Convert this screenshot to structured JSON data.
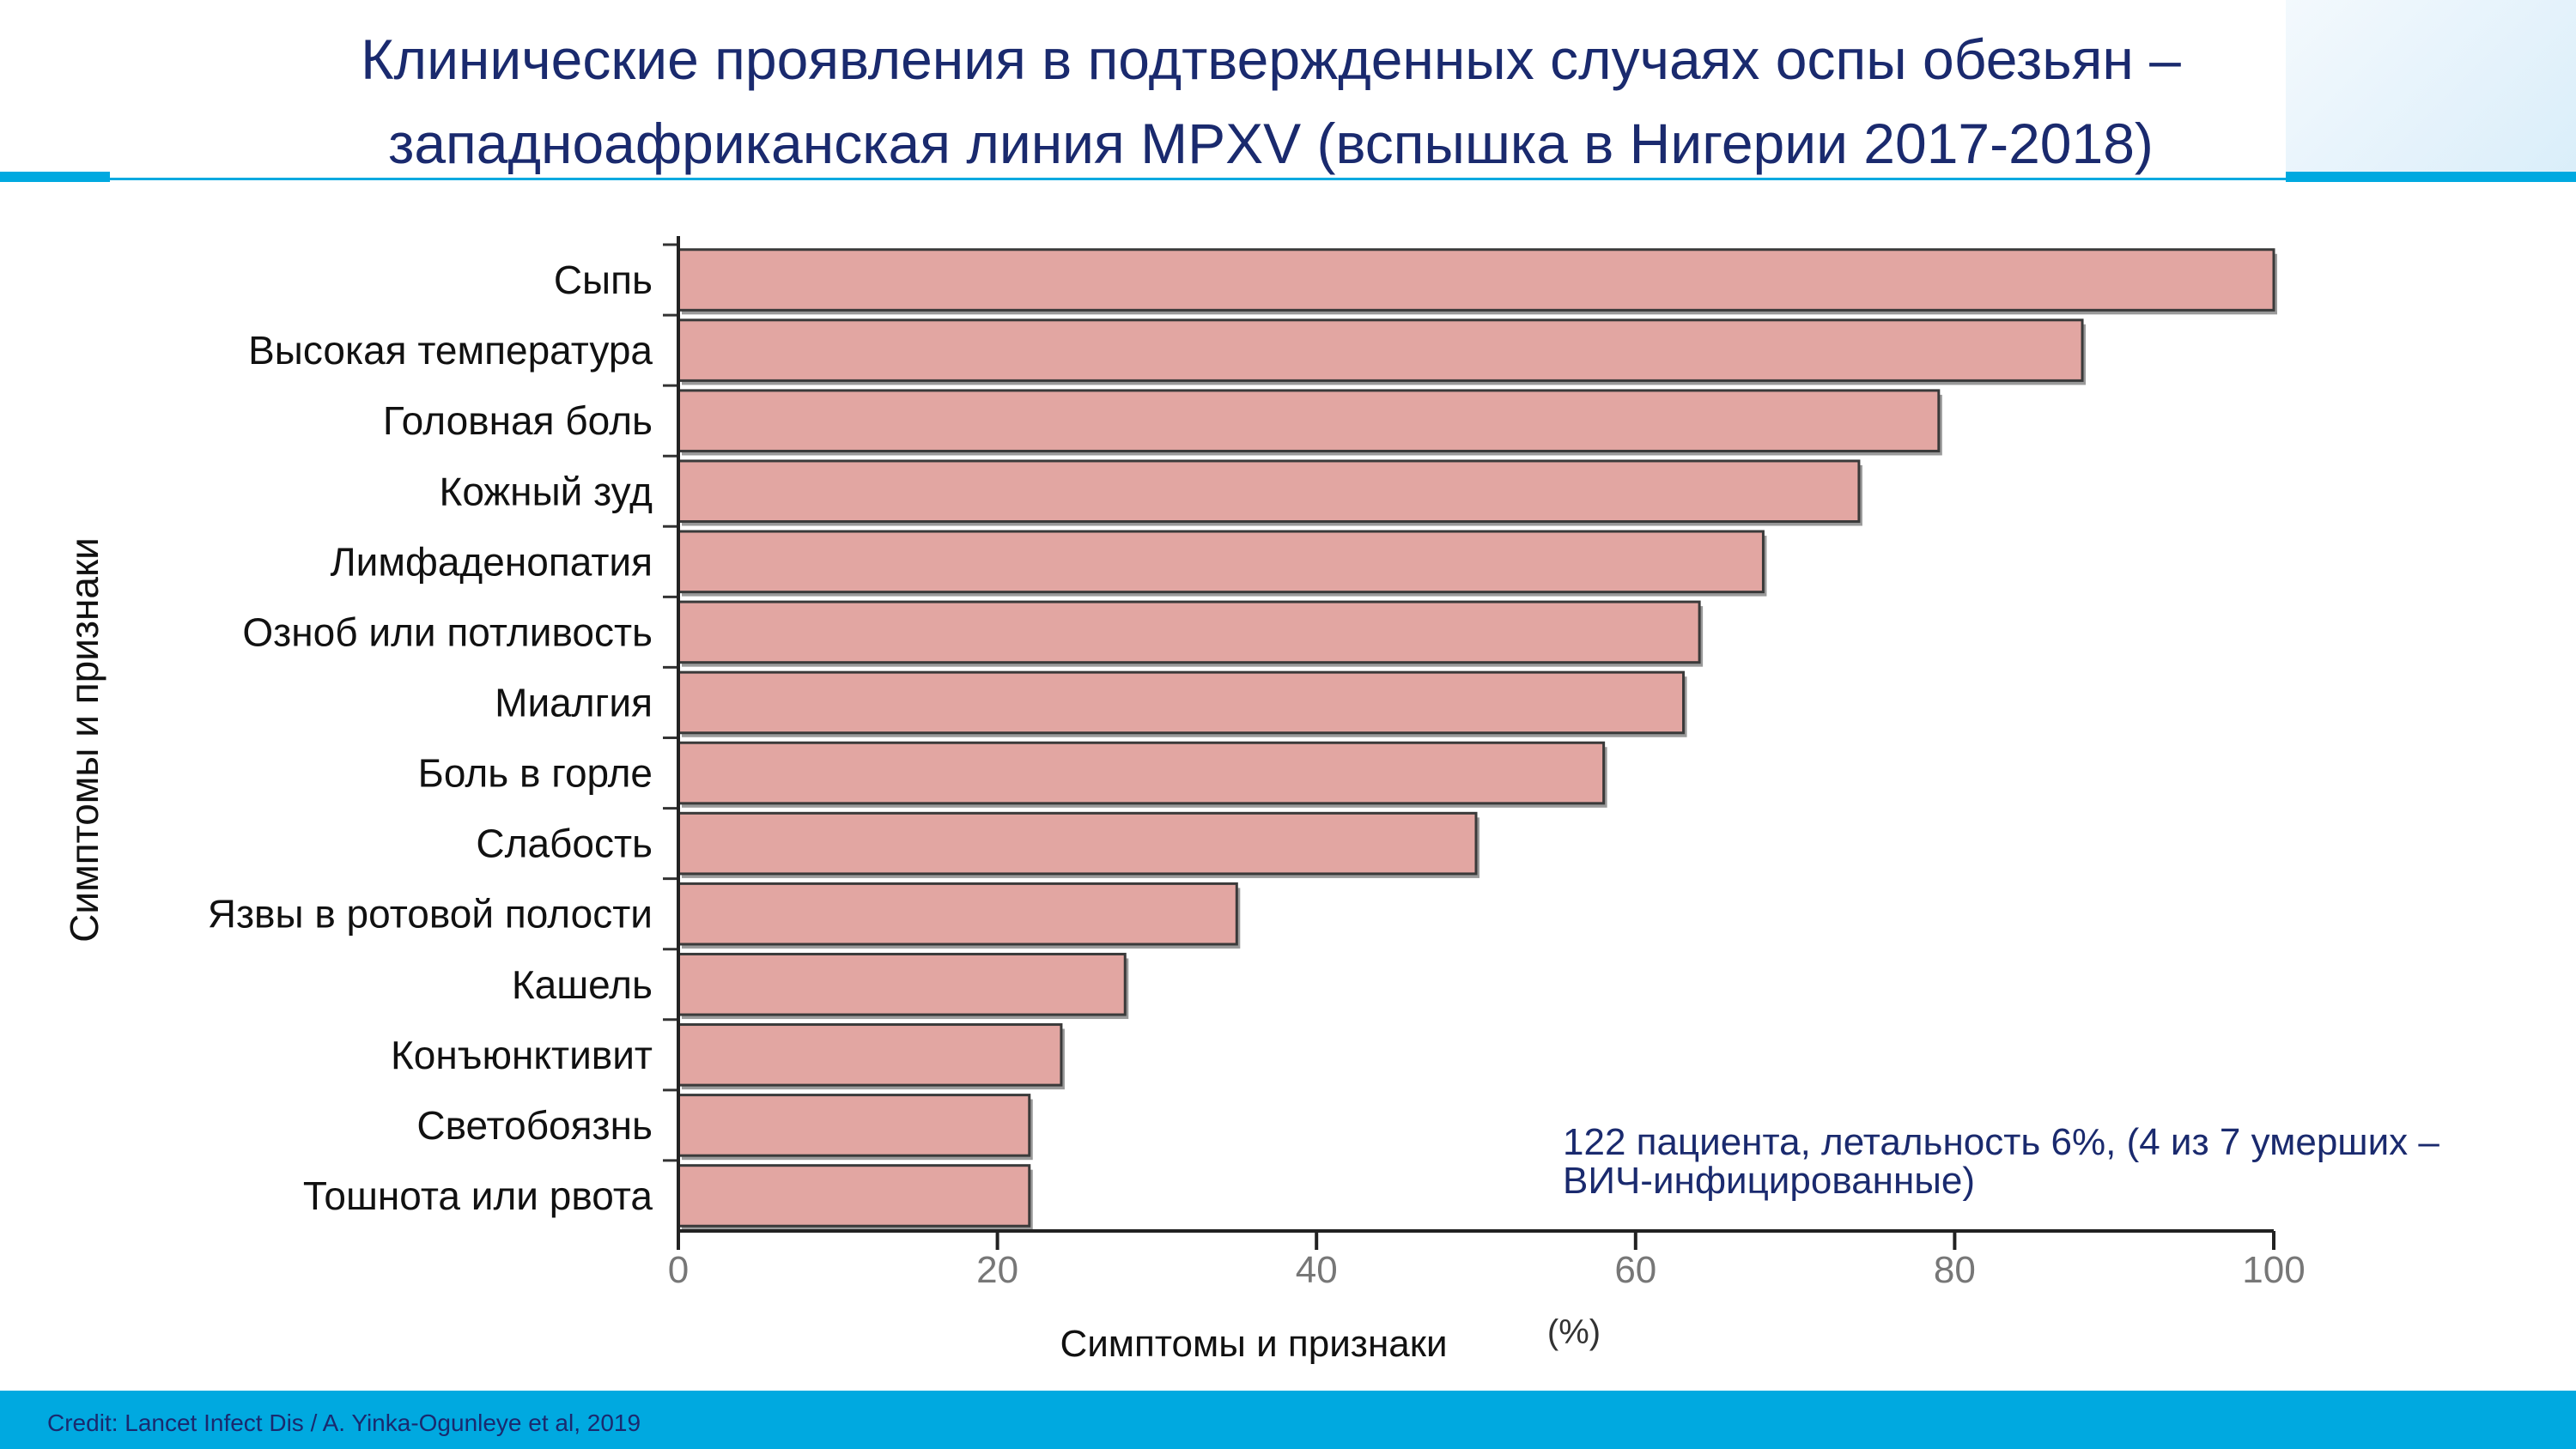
{
  "slide": {
    "title_line1": "Клинические проявления в подтвержденных случаях оспы обезьян –",
    "title_line2": "западноафриканская линия MPXV (вспышка в Нигерии 2017-2018)",
    "credit": "Credit: Lancet Infect Dis / A. Yinka-Ogunleye et al, 2019",
    "accent_color": "#00a9e0",
    "title_color": "#1a2a6e"
  },
  "chart_data": {
    "type": "bar",
    "orientation": "horizontal",
    "title": "",
    "categories": [
      "Сыпь",
      "Высокая температура",
      "Головная боль",
      "Кожный зуд",
      "Лимфаденопатия",
      "Озноб или потливость",
      "Миалгия",
      "Боль в горле",
      "Слабость",
      "Язвы в ротовой полости",
      "Кашель",
      "Конъюнктивит",
      "Светобоязнь",
      "Тошнота или рвота"
    ],
    "values": [
      100,
      88,
      79,
      74,
      68,
      64,
      63,
      58,
      50,
      35,
      28,
      24,
      22,
      22
    ],
    "xlim": [
      0,
      100
    ],
    "xticks": [
      "0",
      "20",
      "40",
      "60",
      "80",
      "100"
    ],
    "xlabel": "Симптомы и признаки",
    "xlabel_unit": "(%)",
    "ylabel": "Симптомы и признаки",
    "annotation_line1": "122 пациента, летальность 6%, (4 из 7 умерших –",
    "annotation_line2": "ВИЧ-инфицированные)",
    "bar_color": "#e2a6a2",
    "bar_edge_color": "#3a3a3a",
    "annotation_color": "#1a2a6e",
    "grid": false
  }
}
